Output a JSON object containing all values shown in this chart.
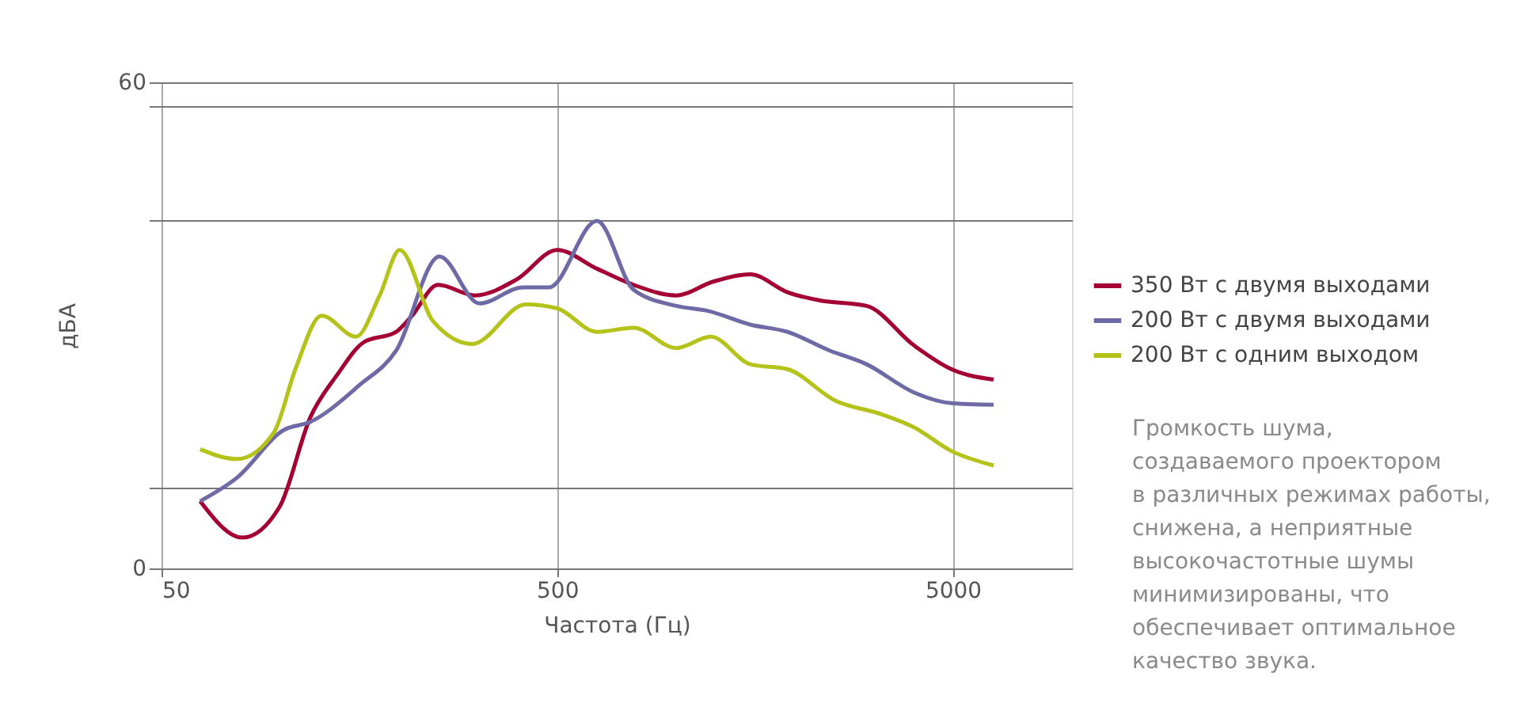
{
  "chart_data": {
    "type": "line",
    "xlabel": "Частота (Гц)",
    "ylabel": "дБА",
    "log": "x",
    "xlim": [
      50,
      10000
    ],
    "xticks": [
      50,
      500,
      5000
    ],
    "ylim": [
      0,
      60
    ],
    "yticks": [
      0,
      {
        "value": 10,
        "label": null
      },
      {
        "value": 43,
        "label": null
      },
      {
        "value": 57,
        "label": null
      },
      60
    ],
    "grid": true,
    "legend": "right",
    "line_style": "solid",
    "marker": "none",
    "annotations": [
      "Громкость шума,\nсоздаваемого проектором\nв различных режимах работы,\nснижена, а неприятные\nвысокочастотные шумы\nминимизированы, что\nобеспечивает оптимальное\nкачество звука."
    ],
    "series": [
      {
        "name": "350 Вт с двумя выходами",
        "color": "#a50034",
        "x": [
          62.6,
          80.1,
          99.4,
          119,
          139,
          162,
          196,
          214,
          250,
          310,
          396,
          500,
          630,
          780,
          1000,
          1239,
          1538,
          1908,
          2295,
          3026,
          3995,
          4954,
          6337
        ],
        "values": [
          8.3,
          3.8,
          7.6,
          18.7,
          23.9,
          27.9,
          29.2,
          31.1,
          35.0,
          33.7,
          35.7,
          39.3,
          37.0,
          35.0,
          33.7,
          35.4,
          36.3,
          34.1,
          33.1,
          32.4,
          27.5,
          24.6,
          23.3
        ]
      },
      {
        "name": "200 Вт с двумя выходами",
        "color": "#6e6aa6",
        "x": [
          62.6,
          77.6,
          102,
          119,
          158,
          196,
          252,
          318,
          410,
          477,
          630,
          780,
          1000,
          1200,
          1538,
          1908,
          2440,
          3026,
          3995,
          4954,
          6337
        ],
        "values": [
          8.3,
          11.2,
          17.1,
          18.1,
          22.6,
          26.9,
          38.5,
          32.7,
          34.7,
          34.7,
          42.9,
          34.4,
          32.4,
          31.8,
          30.1,
          29.2,
          26.9,
          25.2,
          21.7,
          20.4,
          20.2
        ]
      },
      {
        "name": "200 Вт с одним выходом",
        "color": "#b5c21a",
        "x": [
          62.6,
          77.6,
          96.2,
          109,
          127,
          155,
          178,
          200,
          243,
          305,
          417,
          500,
          630,
          780,
          1000,
          1222,
          1538,
          1908,
          2525,
          3312,
          3995,
          4954,
          6337
        ],
        "values": [
          14.7,
          13.5,
          16.8,
          24.6,
          31.2,
          28.6,
          33.7,
          39.3,
          30.5,
          27.7,
          32.6,
          32.1,
          29.2,
          29.7,
          27.2,
          28.6,
          25.2,
          24.6,
          20.7,
          19.0,
          17.4,
          14.5,
          12.7
        ]
      }
    ]
  }
}
